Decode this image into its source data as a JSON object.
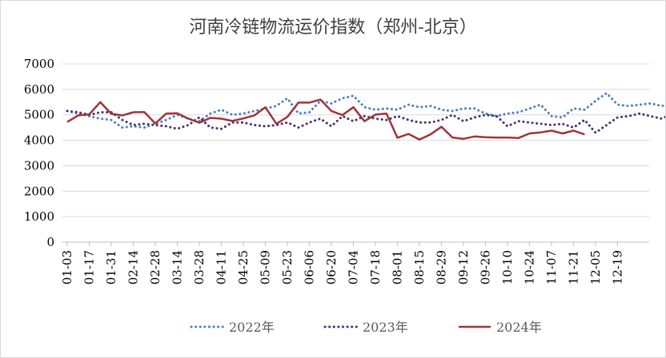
{
  "chart_data": {
    "type": "line",
    "title": "河南冷链物流运价指数（郑州-北京）",
    "xlabel": "",
    "ylabel": "",
    "ylim": [
      0,
      7000
    ],
    "yticks": [
      0,
      1000,
      2000,
      3000,
      4000,
      5000,
      6000,
      7000
    ],
    "x_ticks": [
      "01-03",
      "01-17",
      "01-31",
      "02-14",
      "02-28",
      "03-14",
      "03-28",
      "04-11",
      "04-25",
      "05-09",
      "05-23",
      "06-06",
      "06-20",
      "07-04",
      "07-18",
      "08-01",
      "08-15",
      "08-29",
      "09-12",
      "09-26",
      "10-10",
      "10-24",
      "11-07",
      "11-21",
      "12-05",
      "12-19"
    ],
    "grid": "horizontal",
    "legend_position": "bottom",
    "series": [
      {
        "name": "2022年",
        "style": "dotted",
        "color": "#4a7fbf",
        "values": [
          5150,
          5050,
          4950,
          4850,
          4800,
          4500,
          4550,
          4500,
          4650,
          4800,
          5000,
          4850,
          4750,
          5050,
          5200,
          5000,
          5050,
          5150,
          5250,
          5350,
          5650,
          5050,
          5100,
          5550,
          5450,
          5650,
          5750,
          5300,
          5200,
          5250,
          5200,
          5400,
          5300,
          5350,
          5200,
          5150,
          5250,
          5250,
          5050,
          4950,
          5050,
          5100,
          5250,
          5400,
          4950,
          4900,
          5250,
          5200,
          5550,
          5850,
          5400,
          5350,
          5400,
          5450,
          5350,
          5400,
          5100,
          4800,
          5000,
          4800,
          4850,
          5050
        ]
      },
      {
        "name": "2023年",
        "style": "dotted",
        "color": "#4b2f6e",
        "values": [
          5150,
          5100,
          5000,
          5100,
          5100,
          4800,
          4600,
          4650,
          4600,
          4550,
          4450,
          4600,
          4900,
          4500,
          4450,
          4700,
          4700,
          4600,
          4550,
          4600,
          4700,
          4500,
          4700,
          4850,
          4550,
          4950,
          4750,
          4950,
          4850,
          4800,
          4950,
          4800,
          4700,
          4700,
          4800,
          5000,
          4750,
          4900,
          5000,
          4950,
          4550,
          4750,
          4700,
          4650,
          4600,
          4650,
          4500,
          4800,
          4300,
          4600,
          4900,
          4950,
          5050,
          4950,
          4850,
          5050,
          4900,
          4850,
          4900,
          4700,
          4900,
          4900,
          5000
        ]
      },
      {
        "name": "2024年",
        "style": "solid",
        "color": "#a23339",
        "values": [
          4720,
          4980,
          5020,
          5500,
          5040,
          4980,
          5100,
          5110,
          4660,
          5050,
          5060,
          4850,
          4690,
          4880,
          4850,
          4760,
          4860,
          4980,
          5300,
          4650,
          4920,
          5480,
          5480,
          5600,
          5150,
          4990,
          5300,
          4750,
          5010,
          5050,
          4100,
          4250,
          4030,
          4230,
          4530,
          4110,
          4060,
          4150,
          4120,
          4110,
          4110,
          4090,
          4270,
          4310,
          4380,
          4270,
          4380,
          4230
        ]
      }
    ]
  }
}
